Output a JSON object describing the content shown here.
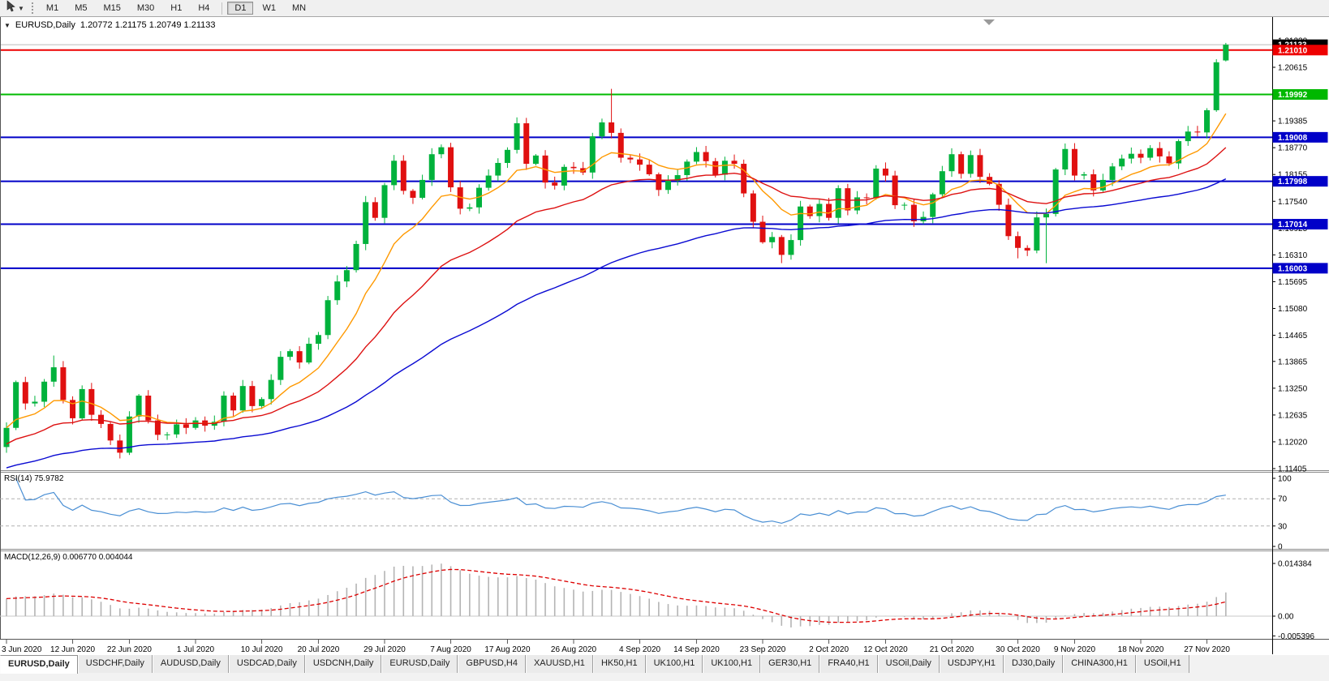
{
  "toolbar": {
    "tool_icon": "cursor-arrow",
    "timeframes": [
      "M1",
      "M5",
      "M15",
      "M30",
      "H1",
      "H4",
      "D1",
      "W1",
      "MN"
    ],
    "active_timeframe": "D1"
  },
  "chart": {
    "collapse_icon": "▼",
    "symbol": "EURUSD,Daily",
    "ohlc_text": "1.20772 1.21175 1.20749 1.21133"
  },
  "price_axis": {
    "ticks": [
      [
        "1.21230",
        1.2123
      ],
      [
        "1.20615",
        1.20615
      ],
      [
        "1.19385",
        1.19385
      ],
      [
        "1.18770",
        1.1877
      ],
      [
        "1.18155",
        1.18155
      ],
      [
        "1.17540",
        1.1754
      ],
      [
        "1.16925",
        1.16925
      ],
      [
        "1.16310",
        1.1631
      ],
      [
        "1.15695",
        1.15695
      ],
      [
        "1.15080",
        1.1508
      ],
      [
        "1.14465",
        1.14465
      ],
      [
        "1.13865",
        1.13865
      ],
      [
        "1.13250",
        1.1325
      ],
      [
        "1.12635",
        1.12635
      ],
      [
        "1.12020",
        1.1202
      ],
      [
        "1.11405",
        1.11405
      ]
    ],
    "badges": [
      [
        "1.21133",
        1.21133,
        "#000000"
      ],
      [
        "1.21010",
        1.2101,
        "#ee0000"
      ],
      [
        "1.19992",
        1.19992,
        "#00b800"
      ],
      [
        "1.19008",
        1.19008,
        "#0000c8"
      ],
      [
        "1.17998",
        1.17998,
        "#0000c8"
      ],
      [
        "1.17014",
        1.17014,
        "#0000c8"
      ],
      [
        "1.16003",
        1.16003,
        "#0000c8"
      ]
    ]
  },
  "hlines": [
    [
      1.2101,
      "#ee0000",
      2
    ],
    [
      1.19992,
      "#00bb00",
      2
    ],
    [
      1.19008,
      "#0000c8",
      2
    ],
    [
      1.17998,
      "#0000c8",
      2
    ],
    [
      1.17014,
      "#0000c8",
      2
    ],
    [
      1.16003,
      "#0000c8",
      2
    ]
  ],
  "bid_line": {
    "price": 1.21133,
    "color": "#bbbbbb"
  },
  "rsi_pane": {
    "label": "RSI(14) 75.9782",
    "line_color": "#4a8fd4",
    "axis_labels": [
      [
        "100",
        100
      ],
      [
        "70",
        70
      ],
      [
        "30",
        30
      ],
      [
        "0",
        0
      ]
    ],
    "dashed_levels": [
      70,
      30
    ]
  },
  "macd_pane": {
    "label": "MACD(12,26,9) 0.006770 0.004044",
    "hist_color": "#b4b4b4",
    "signal_color": "#dd0000",
    "axis_labels": [
      [
        "0.014384",
        0.014384
      ],
      [
        "0.00",
        0
      ],
      [
        "-0.005396",
        -0.005396
      ]
    ]
  },
  "tabs": {
    "active": "EURUSD,Daily",
    "items": [
      "EURUSD,Daily",
      "USDCHF,Daily",
      "AUDUSD,Daily",
      "USDCAD,Daily",
      "USDCNH,Daily",
      "EURUSD,Daily",
      "GBPUSD,H4",
      "XAUUSD,H1",
      "HK50,H1",
      "UK100,H1",
      "UK100,H1",
      "GER30,H1",
      "FRA40,H1",
      "USOil,Daily",
      "USDJPY,H1",
      "DJ30,Daily",
      "CHINA300,H1",
      "USOil,H1"
    ]
  },
  "chart_data": {
    "type": "candlestick",
    "symbol": "EURUSD",
    "timeframe": "Daily",
    "ylim": [
      1.11405,
      1.2123
    ],
    "first_open": 1.119,
    "ohlc_last": [
      1.20772,
      1.21175,
      1.20749,
      1.21133
    ],
    "closes": [
      1.1234,
      1.1339,
      1.129,
      1.1294,
      1.134,
      1.1373,
      1.1298,
      1.1256,
      1.1323,
      1.1264,
      1.1243,
      1.1205,
      1.1177,
      1.126,
      1.1308,
      1.1251,
      1.1218,
      1.1219,
      1.1242,
      1.1234,
      1.1251,
      1.1239,
      1.1248,
      1.1308,
      1.1274,
      1.133,
      1.1284,
      1.13,
      1.1344,
      1.1397,
      1.141,
      1.1384,
      1.1427,
      1.1447,
      1.1527,
      1.157,
      1.1596,
      1.1656,
      1.1752,
      1.1716,
      1.1791,
      1.1847,
      1.1778,
      1.1762,
      1.1803,
      1.1862,
      1.1878,
      1.1786,
      1.1737,
      1.174,
      1.1785,
      1.1813,
      1.1842,
      1.1872,
      1.1933,
      1.184,
      1.1859,
      1.1797,
      1.179,
      1.1833,
      1.183,
      1.182,
      1.1903,
      1.1935,
      1.1911,
      1.1854,
      1.185,
      1.1838,
      1.1816,
      1.178,
      1.1801,
      1.1814,
      1.1845,
      1.1867,
      1.1846,
      1.1815,
      1.1847,
      1.184,
      1.1772,
      1.1707,
      1.166,
      1.1672,
      1.1631,
      1.1665,
      1.1742,
      1.172,
      1.1748,
      1.1716,
      1.1784,
      1.1733,
      1.1763,
      1.1761,
      1.1829,
      1.1813,
      1.1745,
      1.1746,
      1.1708,
      1.1718,
      1.177,
      1.1823,
      1.1862,
      1.1817,
      1.186,
      1.181,
      1.1794,
      1.1746,
      1.1674,
      1.1647,
      1.1641,
      1.1717,
      1.1725,
      1.1827,
      1.1874,
      1.1813,
      1.1816,
      1.1779,
      1.1803,
      1.1834,
      1.1852,
      1.1863,
      1.1854,
      1.1876,
      1.1857,
      1.1841,
      1.1892,
      1.1914,
      1.1912,
      1.1963,
      1.2073,
      1.2113
    ],
    "wick_overrides": {
      "5": [
        1.14,
        null
      ],
      "64": [
        1.2012,
        null
      ],
      "82": [
        null,
        1.1612
      ],
      "107": [
        null,
        1.1623
      ],
      "110": [
        null,
        1.1612
      ],
      "128": [
        1.208,
        null
      ]
    },
    "up_color": "#00b23c",
    "down_color": "#e01010",
    "ma": [
      {
        "period": 10,
        "color": "#ff9900",
        "seed_offset": 0
      },
      {
        "period": 25,
        "color": "#dd1111",
        "seed_offset": -0.004
      },
      {
        "period": 60,
        "color": "#0a0ad2",
        "seed_offset": -0.0095
      }
    ],
    "rsi_period": 14,
    "macd_params": [
      12,
      26,
      9
    ],
    "time_labels": [
      [
        "3 Jun 2020",
        0
      ],
      [
        "12 Jun 2020",
        7
      ],
      [
        "22 Jun 2020",
        13
      ],
      [
        "1 Jul 2020",
        20
      ],
      [
        "10 Jul 2020",
        27
      ],
      [
        "20 Jul 2020",
        33
      ],
      [
        "29 Jul 2020",
        40
      ],
      [
        "7 Aug 2020",
        47
      ],
      [
        "17 Aug 2020",
        53
      ],
      [
        "26 Aug 2020",
        60
      ],
      [
        "4 Sep 2020",
        67
      ],
      [
        "14 Sep 2020",
        73
      ],
      [
        "23 Sep 2020",
        80
      ],
      [
        "2 Oct 2020",
        87
      ],
      [
        "12 Oct 2020",
        93
      ],
      [
        "21 Oct 2020",
        100
      ],
      [
        "30 Oct 2020",
        107
      ],
      [
        "9 Nov 2020",
        113
      ],
      [
        "18 Nov 2020",
        120
      ],
      [
        "27 Nov 2020",
        127
      ]
    ]
  }
}
